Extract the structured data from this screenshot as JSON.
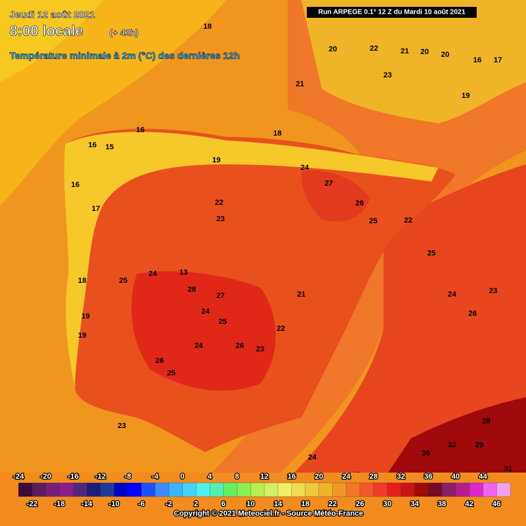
{
  "header": {
    "date": "Jeudi 12 août 2021",
    "time": "8:00 locale",
    "lead": "(+ 42h)",
    "title": "Température minimale à 2m (°C) des dernières 12h",
    "run": "Run ARPEGE 0.1° 12 Z du Mardi 10 août 2021"
  },
  "map_labels": [
    "18",
    "21",
    "20",
    "22",
    "23",
    "21",
    "20",
    "19",
    "16",
    "17",
    "18",
    "16",
    "15",
    "19",
    "16",
    "17",
    "18",
    "19",
    "24",
    "27",
    "26",
    "25",
    "22",
    "23",
    "28",
    "27",
    "24",
    "25",
    "26",
    "23",
    "22",
    "21",
    "24",
    "25",
    "26",
    "24",
    "23",
    "32",
    "30",
    "29",
    "31",
    "28",
    "24",
    "25",
    "21",
    "20",
    "13",
    "16",
    "19",
    "25",
    "22",
    "24",
    "26",
    "25",
    "23"
  ],
  "scale": {
    "ticks_top": [
      -24,
      -20,
      -16,
      -12,
      -8,
      -4,
      0,
      4,
      8,
      12,
      16,
      20,
      24,
      28,
      32,
      36,
      40,
      44
    ],
    "ticks_bottom": [
      -22,
      -18,
      -14,
      -10,
      -6,
      -2,
      2,
      6,
      10,
      14,
      18,
      22,
      26,
      30,
      34,
      38,
      42,
      46
    ],
    "range": [
      -24,
      48
    ],
    "colors": [
      "#3c0a3c",
      "#5a1e5a",
      "#781e78",
      "#8c1e8c",
      "#50287a",
      "#1e1e78",
      "#1e3c96",
      "#0000c8",
      "#0000ff",
      "#1e50ff",
      "#3c8cff",
      "#3cb4ff",
      "#46d2ff",
      "#50f0f0",
      "#50f0b4",
      "#64f064",
      "#8cf050",
      "#b4f050",
      "#d2f064",
      "#f0f064",
      "#f0dc50",
      "#f0c83c",
      "#f0b428",
      "#f09628",
      "#f07828",
      "#f05a28",
      "#f03c28",
      "#e61e1e",
      "#c81414",
      "#a00a0a",
      "#780a28",
      "#8c1e64",
      "#b41e8c",
      "#dc28c8",
      "#f064f0",
      "#f0a0f0"
    ]
  },
  "footer": {
    "copyright": "Copyright © 2021 Meteociel.fr - Source Météo-France"
  }
}
